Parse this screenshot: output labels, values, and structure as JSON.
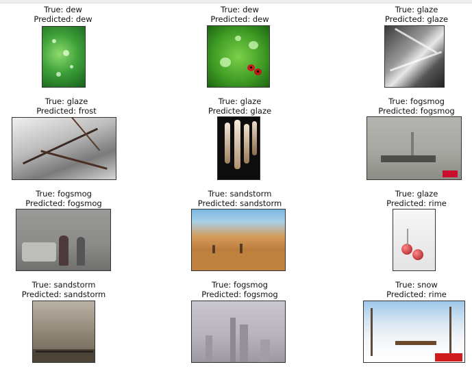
{
  "figure": {
    "cells": [
      {
        "true_label": "True: dew",
        "predicted_label": "Predicted: dew"
      },
      {
        "true_label": "True: dew",
        "predicted_label": "Predicted: dew"
      },
      {
        "true_label": "True: glaze",
        "predicted_label": "Predicted: glaze"
      },
      {
        "true_label": "True: glaze",
        "predicted_label": "Predicted: frost"
      },
      {
        "true_label": "True: glaze",
        "predicted_label": "Predicted: glaze"
      },
      {
        "true_label": "True: fogsmog",
        "predicted_label": "Predicted: fogsmog"
      },
      {
        "true_label": "True: fogsmog",
        "predicted_label": "Predicted: fogsmog"
      },
      {
        "true_label": "True: sandstorm",
        "predicted_label": "Predicted: sandstorm"
      },
      {
        "true_label": "True: glaze",
        "predicted_label": "Predicted: rime"
      },
      {
        "true_label": "True: sandstorm",
        "predicted_label": "Predicted: sandstorm"
      },
      {
        "true_label": "True: fogsmog",
        "predicted_label": "Predicted: fogsmog"
      },
      {
        "true_label": "True: snow",
        "predicted_label": "Predicted: rime"
      }
    ]
  }
}
